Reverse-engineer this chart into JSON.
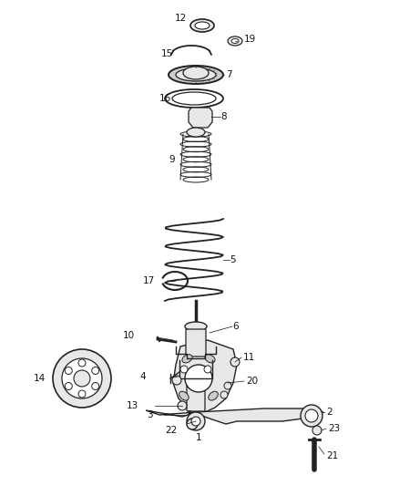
{
  "background_color": "#ffffff",
  "figsize": [
    4.38,
    5.33
  ],
  "dpi": 100,
  "label_color": "#111111",
  "part_color": "#222222",
  "part_fill": "#e8e8e8",
  "part_fill2": "#cccccc"
}
